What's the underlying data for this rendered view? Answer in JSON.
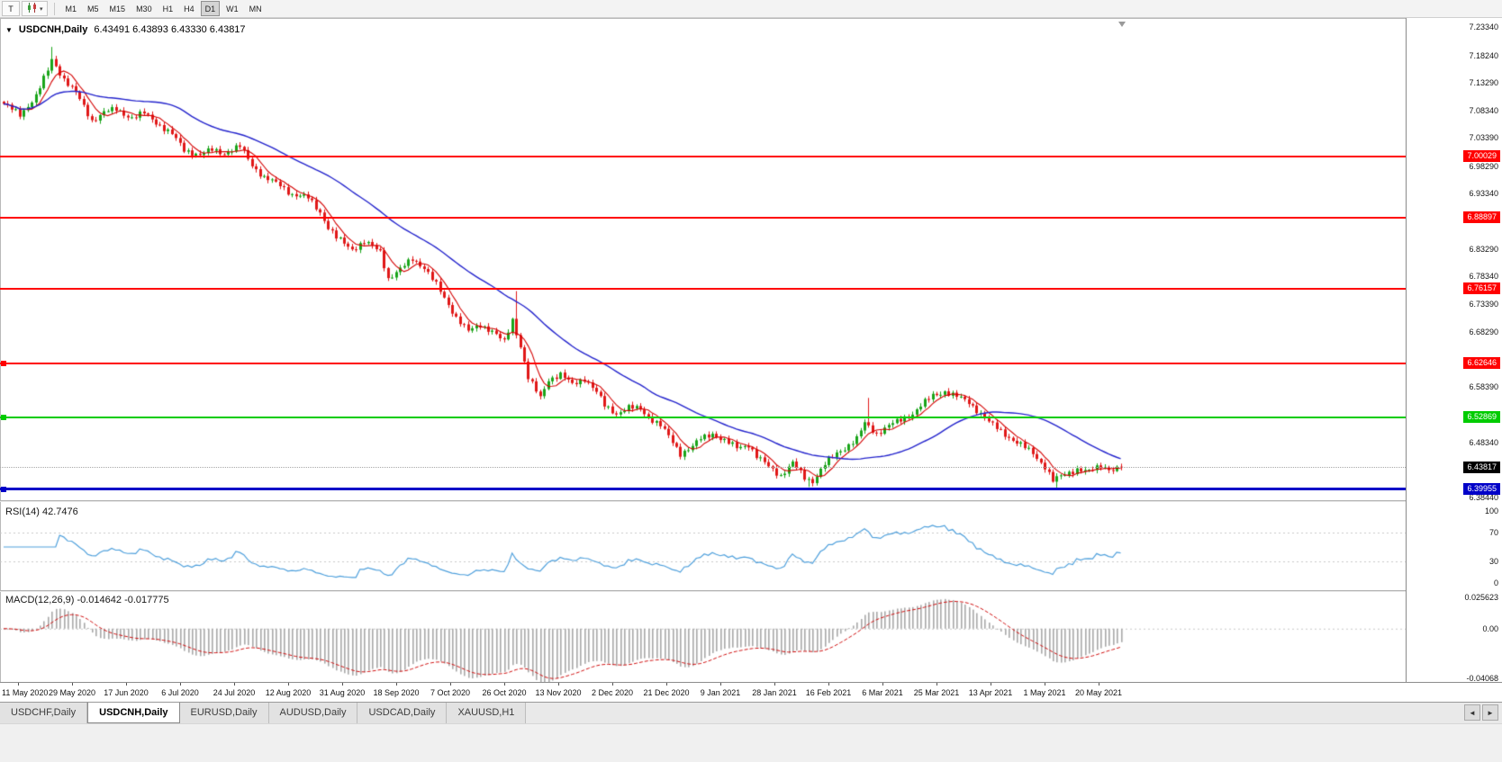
{
  "toolbar": {
    "t_button_label": "T",
    "timeframes": [
      "M1",
      "M5",
      "M15",
      "M30",
      "H1",
      "H4",
      "D1",
      "W1",
      "MN"
    ],
    "active_timeframe": "D1"
  },
  "icons": {
    "oct_toggle": "▼",
    "dropdown_caret": "▾",
    "tab_scroll_left": "◄",
    "tab_scroll_right": "►"
  },
  "tabs": {
    "items": [
      "USDCHF,Daily",
      "USDCNH,Daily",
      "EURUSD,Daily",
      "AUDUSD,Daily",
      "USDCAD,Daily",
      "XAUUSD,H1"
    ],
    "active": "USDCNH,Daily"
  },
  "chart_data": {
    "type": "candlestick",
    "symbol_title": "USDCNH,Daily",
    "ohlc_text": "6.43491 6.43893 6.43330 6.43817",
    "price_min": 6.376,
    "price_max": 7.247,
    "price_axis_labels": [
      "7.23340",
      "7.18240",
      "7.13290",
      "7.08340",
      "7.03390",
      "6.98290",
      "6.93340",
      "6.83290",
      "6.78340",
      "6.73390",
      "6.68290",
      "6.58390",
      "6.48340",
      "6.38440"
    ],
    "bid": {
      "price": "6.43817",
      "tag_color": "#000000"
    },
    "hlines": [
      {
        "price": "7.00029",
        "color": "#FF0000",
        "width": 2,
        "handle": false
      },
      {
        "price": "6.88897",
        "color": "#FF0000",
        "width": 2,
        "handle": false
      },
      {
        "price": "6.76157",
        "color": "#FF0000",
        "width": 2,
        "handle": false
      },
      {
        "price": "6.62646",
        "color": "#FF0000",
        "width": 2,
        "handle": true
      },
      {
        "price": "6.52869",
        "color": "#00CC00",
        "width": 2,
        "handle": true
      },
      {
        "price": "6.39955",
        "color": "#0000C8",
        "width": 3,
        "handle": true
      }
    ],
    "dates": [
      "11 May 2020",
      "29 May 2020",
      "17 Jun 2020",
      "6 Jul 2020",
      "24 Jul 2020",
      "12 Aug 2020",
      "31 Aug 2020",
      "18 Sep 2020",
      "7 Oct 2020",
      "26 Oct 2020",
      "13 Nov 2020",
      "2 Dec 2020",
      "21 Dec 2020",
      "9 Jan 2021",
      "28 Jan 2021",
      "16 Feb 2021",
      "6 Mar 2021",
      "25 Mar 2021",
      "13 Apr 2021",
      "1 May 2021",
      "20 May 2021"
    ],
    "candles": {
      "count": 280,
      "up_color": "#19A419",
      "down_color": "#E01717",
      "close_path": [
        [
          0,
          7.095
        ],
        [
          4,
          7.075
        ],
        [
          8,
          7.11
        ],
        [
          11,
          7.155
        ],
        [
          12,
          7.175
        ],
        [
          15,
          7.14
        ],
        [
          18,
          7.115
        ],
        [
          22,
          7.065
        ],
        [
          25,
          7.08
        ],
        [
          28,
          7.085
        ],
        [
          32,
          7.07
        ],
        [
          35,
          7.078
        ],
        [
          38,
          7.062
        ],
        [
          42,
          7.04
        ],
        [
          45,
          7.012
        ],
        [
          49,
          7.003
        ],
        [
          52,
          7.012
        ],
        [
          55,
          7.006
        ],
        [
          59,
          7.018
        ],
        [
          62,
          6.985
        ],
        [
          65,
          6.962
        ],
        [
          69,
          6.948
        ],
        [
          72,
          6.932
        ],
        [
          76,
          6.925
        ],
        [
          79,
          6.9
        ],
        [
          81,
          6.872
        ],
        [
          83,
          6.853
        ],
        [
          87,
          6.833
        ],
        [
          90,
          6.846
        ],
        [
          94,
          6.828
        ],
        [
          96,
          6.78
        ],
        [
          99,
          6.796
        ],
        [
          102,
          6.815
        ],
        [
          105,
          6.8
        ],
        [
          108,
          6.768
        ],
        [
          110,
          6.744
        ],
        [
          113,
          6.71
        ],
        [
          116,
          6.684
        ],
        [
          119,
          6.696
        ],
        [
          122,
          6.685
        ],
        [
          125,
          6.664
        ],
        [
          127,
          6.705
        ],
        [
          129,
          6.658
        ],
        [
          131,
          6.6
        ],
        [
          134,
          6.564
        ],
        [
          136,
          6.598
        ],
        [
          139,
          6.606
        ],
        [
          142,
          6.588
        ],
        [
          145,
          6.6
        ],
        [
          148,
          6.574
        ],
        [
          150,
          6.55
        ],
        [
          153,
          6.536
        ],
        [
          156,
          6.546
        ],
        [
          159,
          6.544
        ],
        [
          161,
          6.53
        ],
        [
          164,
          6.514
        ],
        [
          167,
          6.484
        ],
        [
          169,
          6.464
        ],
        [
          172,
          6.476
        ],
        [
          174,
          6.49
        ],
        [
          177,
          6.5
        ],
        [
          180,
          6.486
        ],
        [
          183,
          6.474
        ],
        [
          186,
          6.48
        ],
        [
          188,
          6.458
        ],
        [
          191,
          6.44
        ],
        [
          194,
          6.424
        ],
        [
          197,
          6.446
        ],
        [
          200,
          6.42
        ],
        [
          202,
          6.414
        ],
        [
          205,
          6.444
        ],
        [
          208,
          6.464
        ],
        [
          210,
          6.474
        ],
        [
          213,
          6.49
        ],
        [
          215,
          6.518
        ],
        [
          218,
          6.5
        ],
        [
          221,
          6.514
        ],
        [
          224,
          6.524
        ],
        [
          227,
          6.536
        ],
        [
          229,
          6.55
        ],
        [
          232,
          6.568
        ],
        [
          235,
          6.576
        ],
        [
          238,
          6.566
        ],
        [
          241,
          6.556
        ],
        [
          244,
          6.536
        ],
        [
          246,
          6.52
        ],
        [
          249,
          6.504
        ],
        [
          252,
          6.488
        ],
        [
          255,
          6.474
        ],
        [
          257,
          6.464
        ],
        [
          260,
          6.44
        ],
        [
          262,
          6.414
        ],
        [
          265,
          6.426
        ],
        [
          268,
          6.436
        ],
        [
          271,
          6.43
        ],
        [
          274,
          6.442
        ],
        [
          277,
          6.434
        ],
        [
          279,
          6.438
        ]
      ],
      "spikes": [
        [
          12,
          7.198,
          "high"
        ],
        [
          128,
          6.757,
          "high"
        ],
        [
          216,
          6.564,
          "high"
        ],
        [
          201,
          6.403,
          "low"
        ],
        [
          263,
          6.402,
          "low"
        ]
      ]
    },
    "ma_fast": {
      "period": 6,
      "color": "#D40000"
    },
    "ma_slow": {
      "period": 34,
      "color": "#2323CC"
    },
    "rsi": {
      "label": "RSI(14) 42.7476",
      "period": 14,
      "current": 42.7476,
      "axis_labels": [
        "100",
        "70",
        "30",
        "0"
      ],
      "levels": [
        70,
        30
      ],
      "color": "#4FA0DC"
    },
    "macd": {
      "label": "MACD(12,26,9) -0.014642 -0.017775",
      "fast": 12,
      "slow": 26,
      "signal": 9,
      "main_value": -0.014642,
      "signal_value": -0.017775,
      "axis_labels": [
        "0.025623",
        "0.00",
        "-0.04068"
      ],
      "max": 0.025623,
      "min": -0.04068,
      "hist_color": "#A8A8A8",
      "signal_color": "#D01010"
    }
  }
}
